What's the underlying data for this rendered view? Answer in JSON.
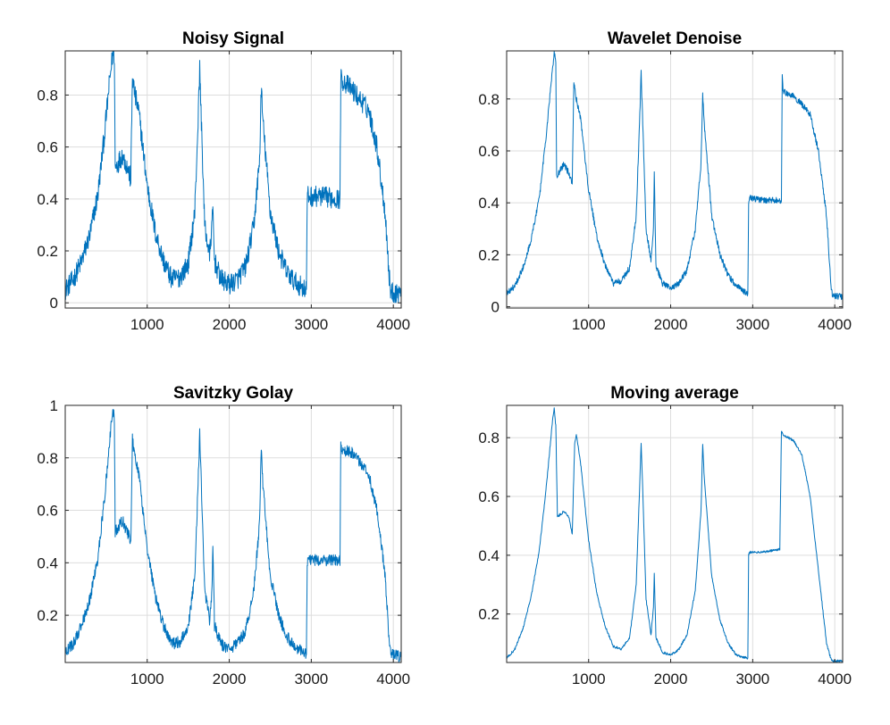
{
  "figure": {
    "colors": {
      "series": "#0072BD",
      "axis": "#262626",
      "grid": "#dddddd",
      "background": "#ffffff"
    }
  },
  "chart_data": [
    {
      "type": "line",
      "title": "Noisy Signal",
      "xlabel": "",
      "ylabel": "",
      "xlim": [
        1,
        4096
      ],
      "ylim": [
        -0.02,
        0.97
      ],
      "xticks": [
        1000,
        2000,
        3000,
        4000
      ],
      "yticks": [
        0,
        0.2,
        0.4,
        0.6,
        0.8
      ],
      "ytick_labels": [
        "0",
        "0.2",
        "0.4",
        "0.6",
        "0.8"
      ],
      "grid": true,
      "noise": 0.04,
      "series": [
        {
          "x": [
            1,
            100,
            200,
            300,
            400,
            480,
            540,
            580,
            600,
            610,
            700,
            780,
            800,
            820,
            850,
            900,
            1000,
            1100,
            1200,
            1300,
            1400,
            1500,
            1580,
            1620,
            1640,
            1660,
            1700,
            1760,
            1790,
            1800,
            1820,
            1900,
            2000,
            2100,
            2200,
            2300,
            2370,
            2390,
            2410,
            2500,
            2600,
            2700,
            2800,
            2940,
            2950,
            2960,
            3100,
            3350,
            3360,
            3370,
            3500,
            3600,
            3700,
            3800,
            3900,
            3950,
            3970,
            4000,
            4096
          ],
          "y": [
            0.05,
            0.09,
            0.16,
            0.26,
            0.42,
            0.65,
            0.85,
            0.96,
            0.95,
            0.52,
            0.57,
            0.5,
            0.47,
            0.87,
            0.8,
            0.73,
            0.45,
            0.27,
            0.16,
            0.09,
            0.1,
            0.15,
            0.35,
            0.7,
            0.9,
            0.7,
            0.3,
            0.18,
            0.3,
            0.36,
            0.16,
            0.09,
            0.07,
            0.09,
            0.14,
            0.3,
            0.55,
            0.83,
            0.7,
            0.35,
            0.2,
            0.12,
            0.08,
            0.05,
            0.4,
            0.41,
            0.41,
            0.4,
            0.87,
            0.86,
            0.82,
            0.78,
            0.74,
            0.6,
            0.35,
            0.1,
            0.04,
            0.04,
            0.04
          ]
        }
      ]
    },
    {
      "type": "line",
      "title": "Wavelet Denoise",
      "xlabel": "",
      "ylabel": "",
      "xlim": [
        1,
        4096
      ],
      "ylim": [
        -0.005,
        0.985
      ],
      "xticks": [
        1000,
        2000,
        3000,
        4000
      ],
      "yticks": [
        0,
        0.2,
        0.4,
        0.6,
        0.8
      ],
      "ytick_labels": [
        "0",
        "0.2",
        "0.4",
        "0.6",
        "0.8"
      ],
      "grid": true,
      "noise": 0.012,
      "series": [
        {
          "x": [
            1,
            100,
            200,
            300,
            400,
            480,
            540,
            580,
            600,
            610,
            700,
            780,
            800,
            820,
            850,
            900,
            1000,
            1100,
            1200,
            1300,
            1400,
            1500,
            1580,
            1620,
            1640,
            1660,
            1700,
            1760,
            1790,
            1800,
            1820,
            1900,
            2000,
            2100,
            2200,
            2300,
            2370,
            2390,
            2410,
            2500,
            2600,
            2700,
            2800,
            2940,
            2950,
            2960,
            3100,
            3350,
            3360,
            3370,
            3500,
            3600,
            3700,
            3800,
            3900,
            3950,
            3970,
            4000,
            4096
          ],
          "y": [
            0.05,
            0.08,
            0.15,
            0.26,
            0.42,
            0.65,
            0.85,
            0.98,
            0.95,
            0.5,
            0.55,
            0.5,
            0.47,
            0.87,
            0.8,
            0.73,
            0.45,
            0.27,
            0.16,
            0.09,
            0.1,
            0.15,
            0.35,
            0.7,
            0.9,
            0.7,
            0.3,
            0.18,
            0.3,
            0.52,
            0.16,
            0.09,
            0.07,
            0.09,
            0.14,
            0.3,
            0.55,
            0.82,
            0.7,
            0.35,
            0.2,
            0.12,
            0.08,
            0.05,
            0.4,
            0.42,
            0.41,
            0.41,
            0.9,
            0.83,
            0.81,
            0.78,
            0.74,
            0.6,
            0.35,
            0.1,
            0.04,
            0.04,
            0.04
          ]
        }
      ]
    },
    {
      "type": "line",
      "title": "Savitzky Golay",
      "xlabel": "",
      "ylabel": "",
      "xlim": [
        1,
        4096
      ],
      "ylim": [
        0.02,
        1.0
      ],
      "xticks": [
        1000,
        2000,
        3000,
        4000
      ],
      "yticks": [
        0.2,
        0.4,
        0.6,
        0.8,
        1
      ],
      "ytick_labels": [
        "0.2",
        "0.4",
        "0.6",
        "0.8",
        "1"
      ],
      "grid": true,
      "noise": 0.022,
      "series": [
        {
          "x": [
            1,
            100,
            200,
            300,
            400,
            480,
            540,
            580,
            600,
            610,
            700,
            780,
            800,
            820,
            850,
            900,
            1000,
            1100,
            1200,
            1300,
            1400,
            1500,
            1580,
            1620,
            1640,
            1660,
            1700,
            1760,
            1790,
            1800,
            1820,
            1900,
            2000,
            2100,
            2200,
            2300,
            2370,
            2390,
            2410,
            2500,
            2600,
            2700,
            2800,
            2940,
            2950,
            2960,
            3100,
            3350,
            3360,
            3370,
            3500,
            3600,
            3700,
            3800,
            3900,
            3950,
            3970,
            4000,
            4096
          ],
          "y": [
            0.06,
            0.09,
            0.16,
            0.26,
            0.42,
            0.65,
            0.85,
            0.99,
            0.95,
            0.52,
            0.56,
            0.5,
            0.47,
            0.87,
            0.8,
            0.73,
            0.45,
            0.27,
            0.16,
            0.09,
            0.1,
            0.15,
            0.35,
            0.7,
            0.89,
            0.7,
            0.3,
            0.18,
            0.3,
            0.47,
            0.16,
            0.09,
            0.07,
            0.09,
            0.14,
            0.3,
            0.55,
            0.84,
            0.7,
            0.35,
            0.2,
            0.12,
            0.08,
            0.05,
            0.4,
            0.41,
            0.41,
            0.41,
            0.87,
            0.83,
            0.82,
            0.78,
            0.74,
            0.6,
            0.35,
            0.1,
            0.05,
            0.05,
            0.04
          ]
        }
      ]
    },
    {
      "type": "line",
      "title": "Moving average",
      "xlabel": "",
      "ylabel": "",
      "xlim": [
        1,
        4096
      ],
      "ylim": [
        0.035,
        0.91
      ],
      "xticks": [
        1000,
        2000,
        3000,
        4000
      ],
      "yticks": [
        0.2,
        0.4,
        0.6,
        0.8
      ],
      "ytick_labels": [
        "0.2",
        "0.4",
        "0.6",
        "0.8"
      ],
      "grid": true,
      "noise": 0.004,
      "series": [
        {
          "x": [
            1,
            100,
            200,
            300,
            400,
            480,
            540,
            560,
            580,
            600,
            620,
            700,
            760,
            800,
            830,
            850,
            900,
            1000,
            1100,
            1200,
            1300,
            1400,
            1500,
            1580,
            1620,
            1640,
            1660,
            1700,
            1760,
            1790,
            1800,
            1820,
            1900,
            2000,
            2100,
            2200,
            2300,
            2370,
            2390,
            2410,
            2500,
            2600,
            2700,
            2800,
            2940,
            2950,
            2960,
            3100,
            3330,
            3350,
            3360,
            3370,
            3500,
            3600,
            3700,
            3800,
            3900,
            3950,
            3970,
            4000,
            4096
          ],
          "y": [
            0.05,
            0.08,
            0.15,
            0.26,
            0.42,
            0.62,
            0.8,
            0.86,
            0.9,
            0.84,
            0.53,
            0.55,
            0.53,
            0.47,
            0.78,
            0.81,
            0.72,
            0.45,
            0.27,
            0.16,
            0.09,
            0.08,
            0.12,
            0.3,
            0.62,
            0.78,
            0.62,
            0.25,
            0.13,
            0.22,
            0.34,
            0.12,
            0.07,
            0.06,
            0.08,
            0.13,
            0.28,
            0.55,
            0.78,
            0.66,
            0.33,
            0.18,
            0.1,
            0.06,
            0.05,
            0.4,
            0.41,
            0.41,
            0.42,
            0.82,
            0.82,
            0.81,
            0.79,
            0.74,
            0.6,
            0.35,
            0.1,
            0.05,
            0.04,
            0.04,
            0.04
          ]
        }
      ]
    }
  ]
}
